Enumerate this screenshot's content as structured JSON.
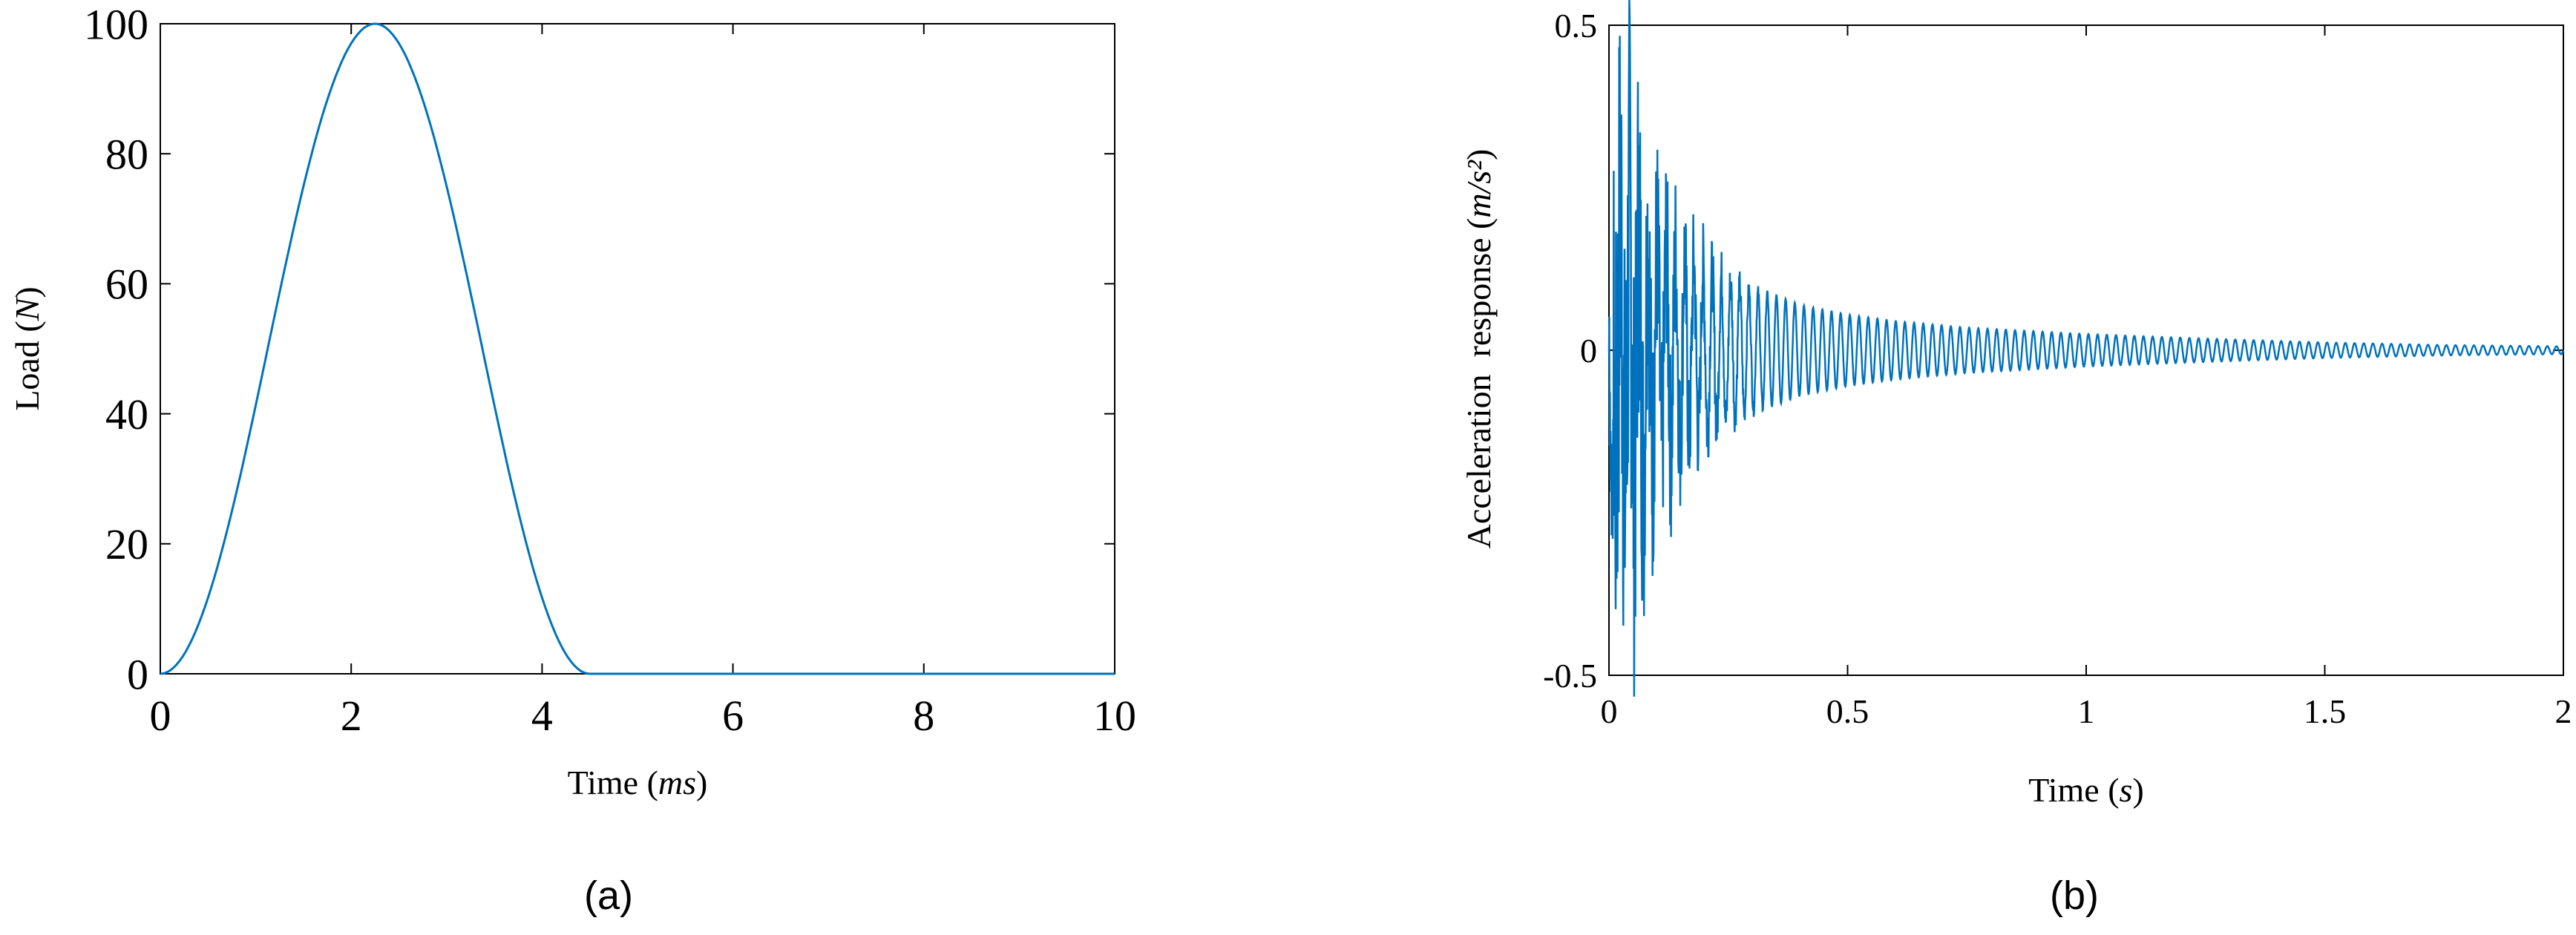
{
  "chart_data": [
    {
      "type": "line",
      "panel_label": "(a)",
      "xlabel": "Time",
      "xlabel_unit": "ms",
      "ylabel": "Load",
      "ylabel_unit": "N",
      "xlim": [
        0,
        10
      ],
      "ylim": [
        0,
        100
      ],
      "xticks": [
        0,
        2,
        4,
        6,
        8,
        10
      ],
      "yticks": [
        0,
        20,
        40,
        60,
        80,
        100
      ],
      "grid": false,
      "line_color": "#0072BD",
      "series": [
        {
          "x": [
            0,
            0.25,
            0.5,
            0.75,
            1.0,
            1.25,
            1.5,
            1.75,
            2.0,
            2.25,
            2.5,
            2.75,
            3.0,
            3.25,
            3.5,
            3.75,
            4.0,
            4.25,
            4.5,
            5,
            6,
            7,
            8,
            9,
            10
          ],
          "y": [
            0,
            3,
            12,
            25,
            41,
            58,
            75,
            88,
            97,
            100,
            97,
            88,
            75,
            58,
            41,
            25,
            12,
            3,
            0,
            0,
            0,
            0,
            0,
            0,
            0
          ]
        }
      ]
    },
    {
      "type": "line",
      "panel_label": "(b)",
      "xlabel": "Time",
      "xlabel_unit": "s",
      "ylabel": "Acceleration  response",
      "ylabel_unit": "m/s²",
      "xlim": [
        0,
        2
      ],
      "ylim": [
        -0.5,
        0.5
      ],
      "xticks": [
        0,
        0.5,
        1,
        1.5,
        2
      ],
      "yticks": [
        -0.5,
        0,
        0.5
      ],
      "grid": false,
      "line_color": "#0072BD",
      "series": [
        {
          "description_values": "decaying oscillation",
          "x": [
            0,
            0.02,
            0.04,
            0.06,
            0.08,
            0.1,
            0.15,
            0.2,
            0.25,
            0.3,
            0.4,
            0.5,
            0.6,
            0.75,
            1.0,
            1.25,
            1.5,
            1.75,
            2.0
          ],
          "y_envelope": [
            0.25,
            0.45,
            0.44,
            0.4,
            0.33,
            0.28,
            0.22,
            0.17,
            0.13,
            0.1,
            0.07,
            0.055,
            0.045,
            0.035,
            0.025,
            0.018,
            0.012,
            0.008,
            0.006
          ]
        }
      ]
    }
  ]
}
